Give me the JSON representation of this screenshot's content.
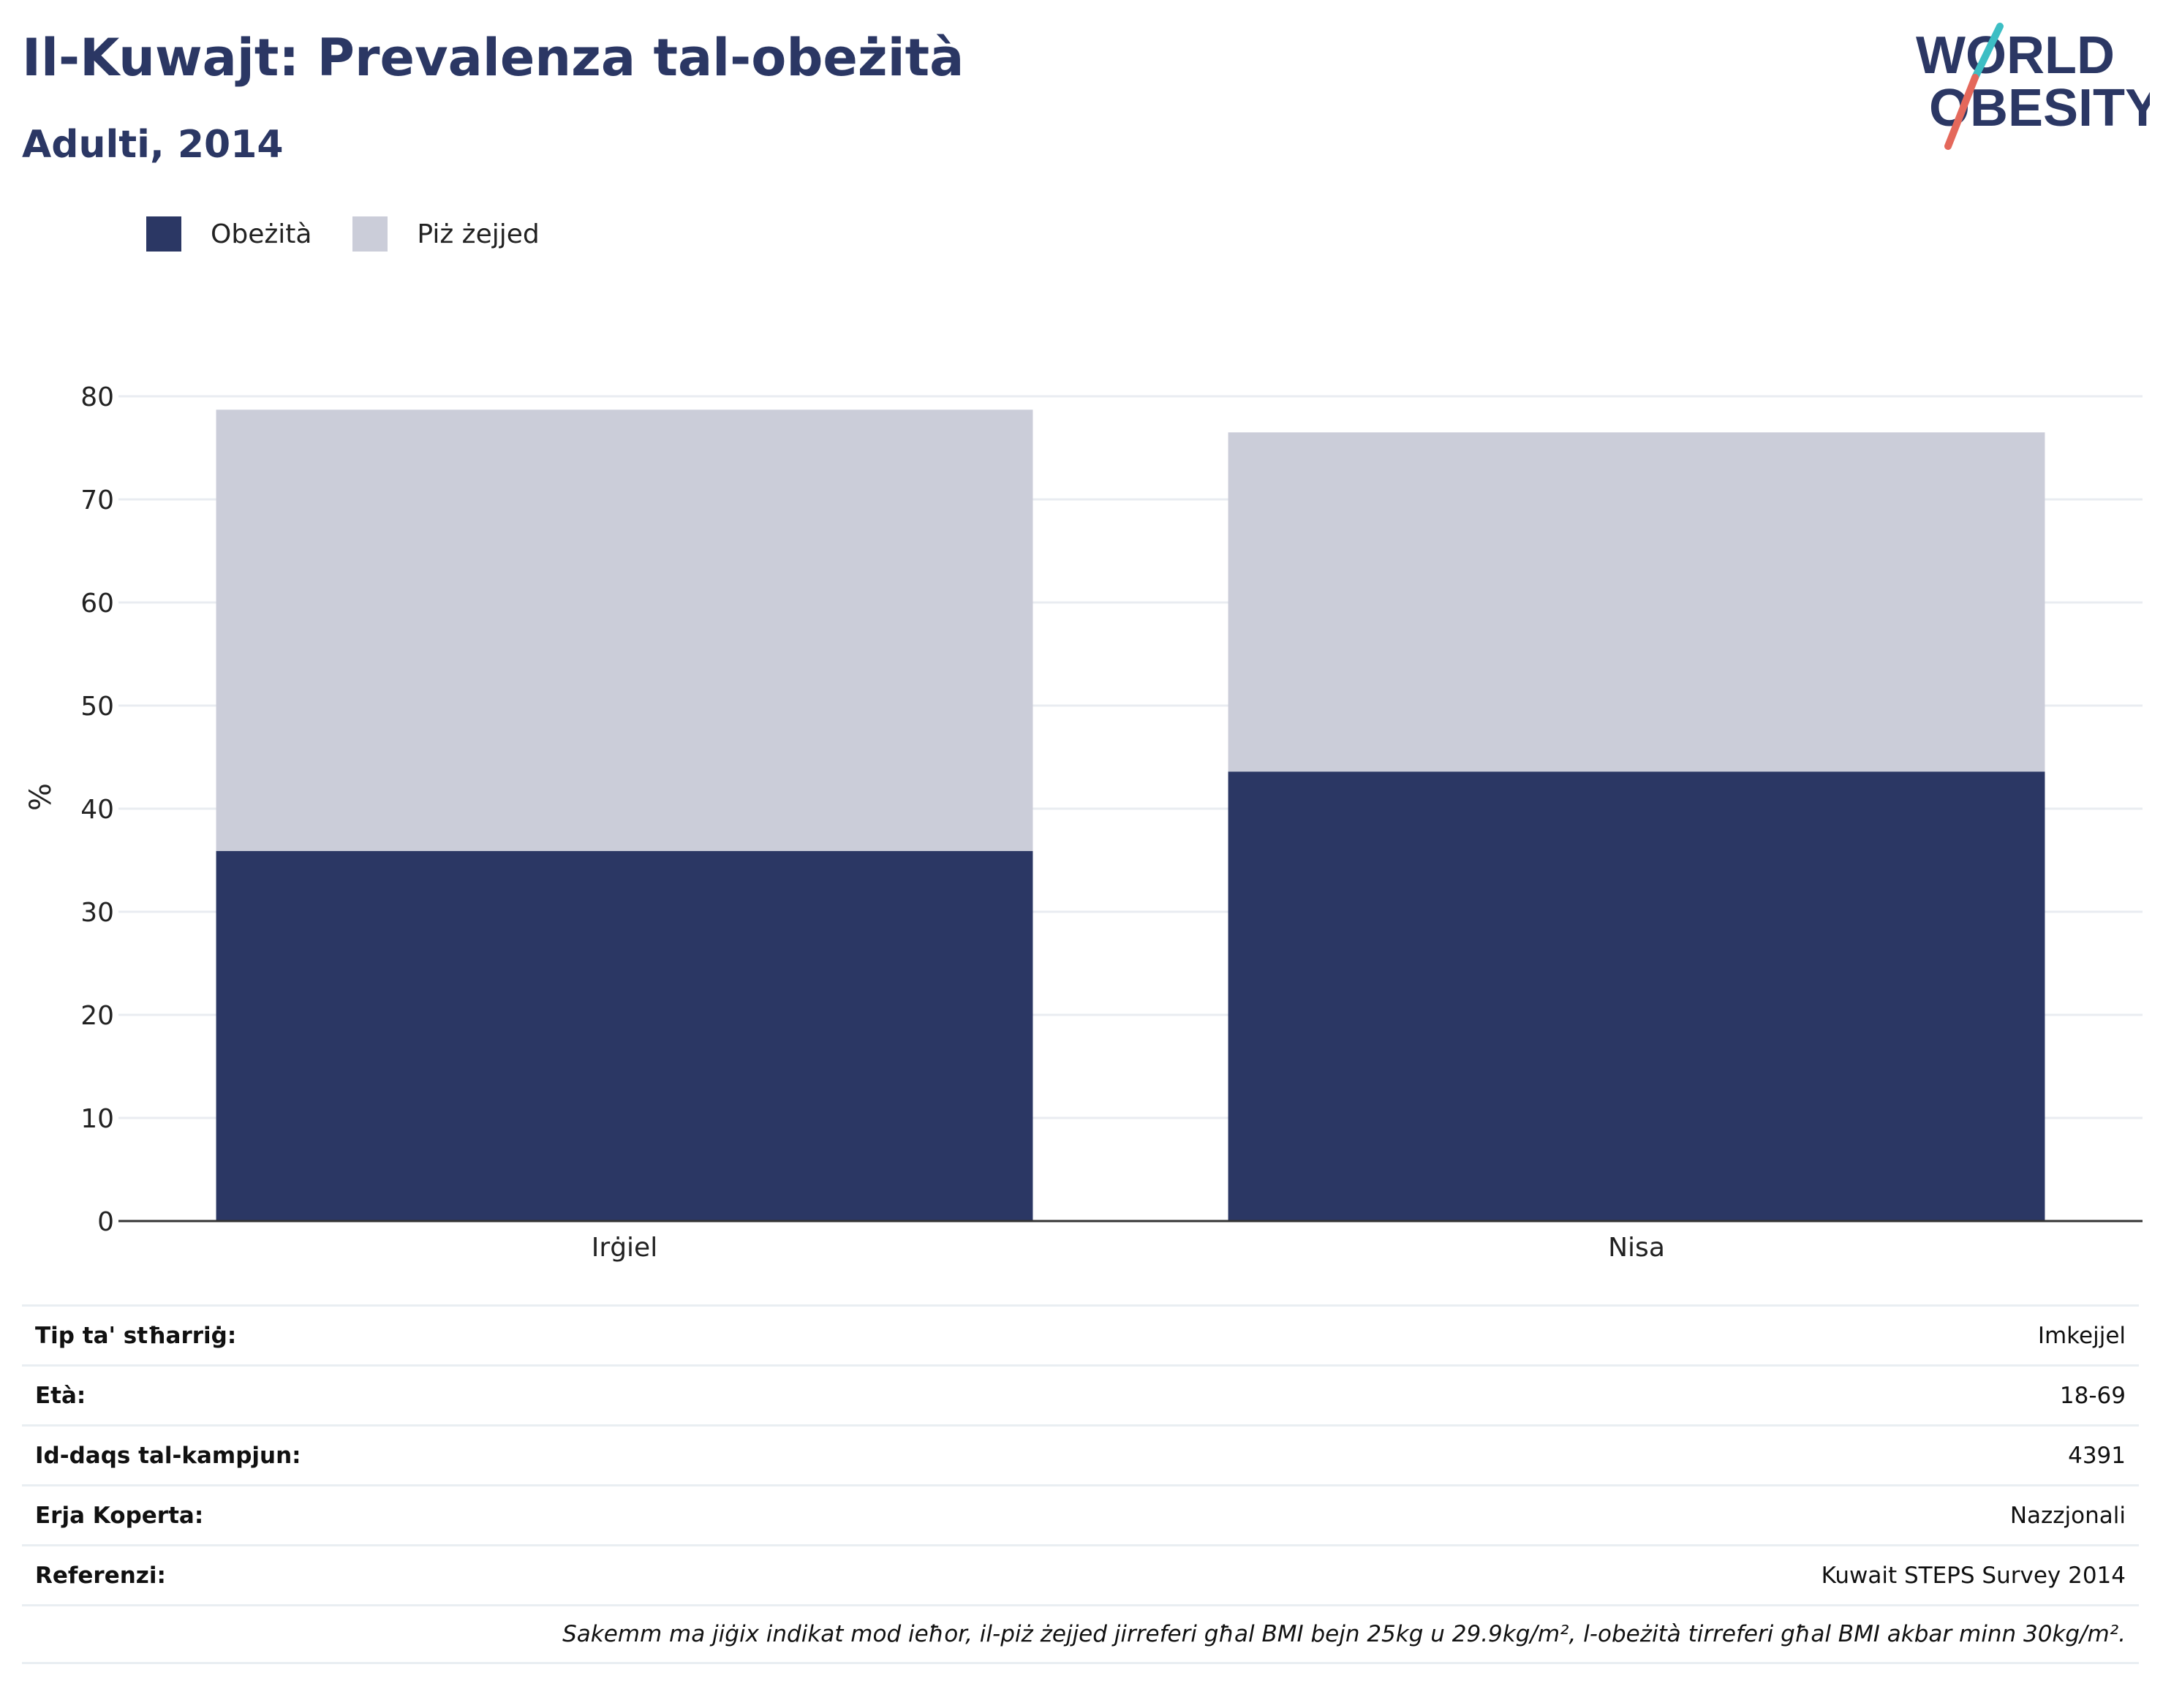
{
  "header": {
    "title": "Il-Kuwajt: Prevalenza tal-obeżità",
    "subtitle": "Adulti, 2014"
  },
  "logo": {
    "line1": "WORLD",
    "line2": "OBESITY",
    "icon": "world-obesity-logo"
  },
  "colors": {
    "obesity": "#2b3764",
    "overweight": "#cbcdd9",
    "text": "#2b3764",
    "accent_teal": "#3dbec4",
    "accent_coral": "#e4685b"
  },
  "legend": [
    {
      "label": "Obeżità",
      "color": "#2b3764"
    },
    {
      "label": "Piż żejjed",
      "color": "#cbcdd9"
    }
  ],
  "chart_data": {
    "type": "bar",
    "stacked": true,
    "title": "Il-Kuwajt: Prevalenza tal-obeżità",
    "subtitle": "Adulti, 2014",
    "xlabel": "",
    "ylabel": "%",
    "categories": [
      "Irġiel",
      "Nisa"
    ],
    "series": [
      {
        "name": "Obeżità",
        "values": [
          35.9,
          43.6
        ]
      },
      {
        "name": "Piż żejjed",
        "values": [
          42.8,
          32.9
        ]
      }
    ],
    "ylim": [
      0,
      80
    ],
    "yticks": [
      0,
      10,
      20,
      30,
      40,
      50,
      60,
      70,
      80
    ],
    "grid": true,
    "legend_position": "top-left"
  },
  "info": {
    "rows": [
      {
        "key": "Tip ta' stħarriġ:",
        "value": "Imkejjel"
      },
      {
        "key": "Età:",
        "value": "18-69"
      },
      {
        "key": "Id-daqs tal-kampjun:",
        "value": "4391"
      },
      {
        "key": "Erja Koperta:",
        "value": "Nazzjonali"
      },
      {
        "key": "Referenzi:",
        "value": "Kuwait STEPS Survey 2014"
      }
    ],
    "note": "Sakemm ma jiġix indikat mod ieħor, il-piż żejjed jirreferi għal BMI bejn 25kg u 29.9kg/m², l-obeżità tirreferi għal BMI akbar minn 30kg/m²."
  }
}
